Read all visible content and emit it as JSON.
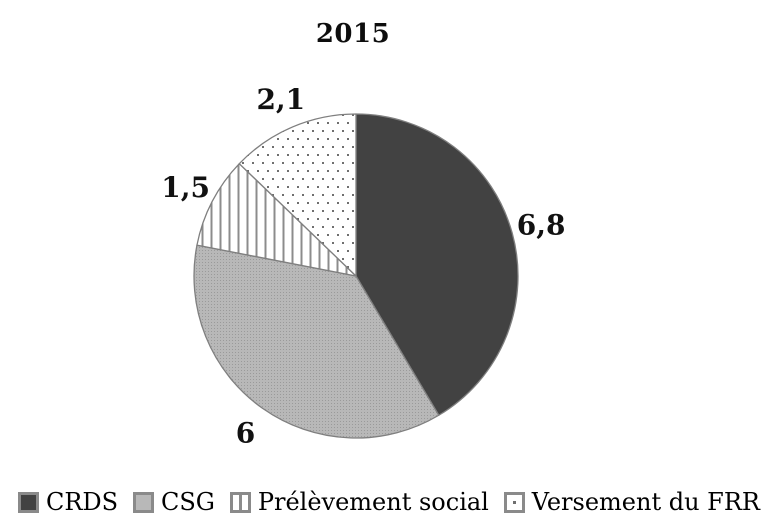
{
  "chart_data": {
    "type": "pie",
    "title": "2015",
    "direction": "clockwise",
    "start_angle_deg": 0,
    "slices": [
      {
        "name": "CRDS",
        "value": 6.8,
        "value_label": "6,8",
        "fill": {
          "style": "solid",
          "color": "#424242"
        }
      },
      {
        "name": "CSG",
        "value": 6,
        "value_label": "6",
        "fill": {
          "style": "halftone",
          "base": "#b8b8b8",
          "dot": "#9a9a9a"
        }
      },
      {
        "name": "Prélèvement social",
        "value": 1.5,
        "value_label": "1,5",
        "fill": {
          "style": "vlines",
          "base": "#ffffff",
          "line": "#8c8c8c"
        }
      },
      {
        "name": "Versement du FRR",
        "value": 2.1,
        "value_label": "2,1",
        "fill": {
          "style": "dots",
          "base": "#ffffff",
          "dot": "#6f6f6f"
        }
      }
    ],
    "outline_color": "#7f7f7f",
    "value_label_color": "#111111",
    "legend_position": "bottom",
    "background": "#ffffff"
  }
}
